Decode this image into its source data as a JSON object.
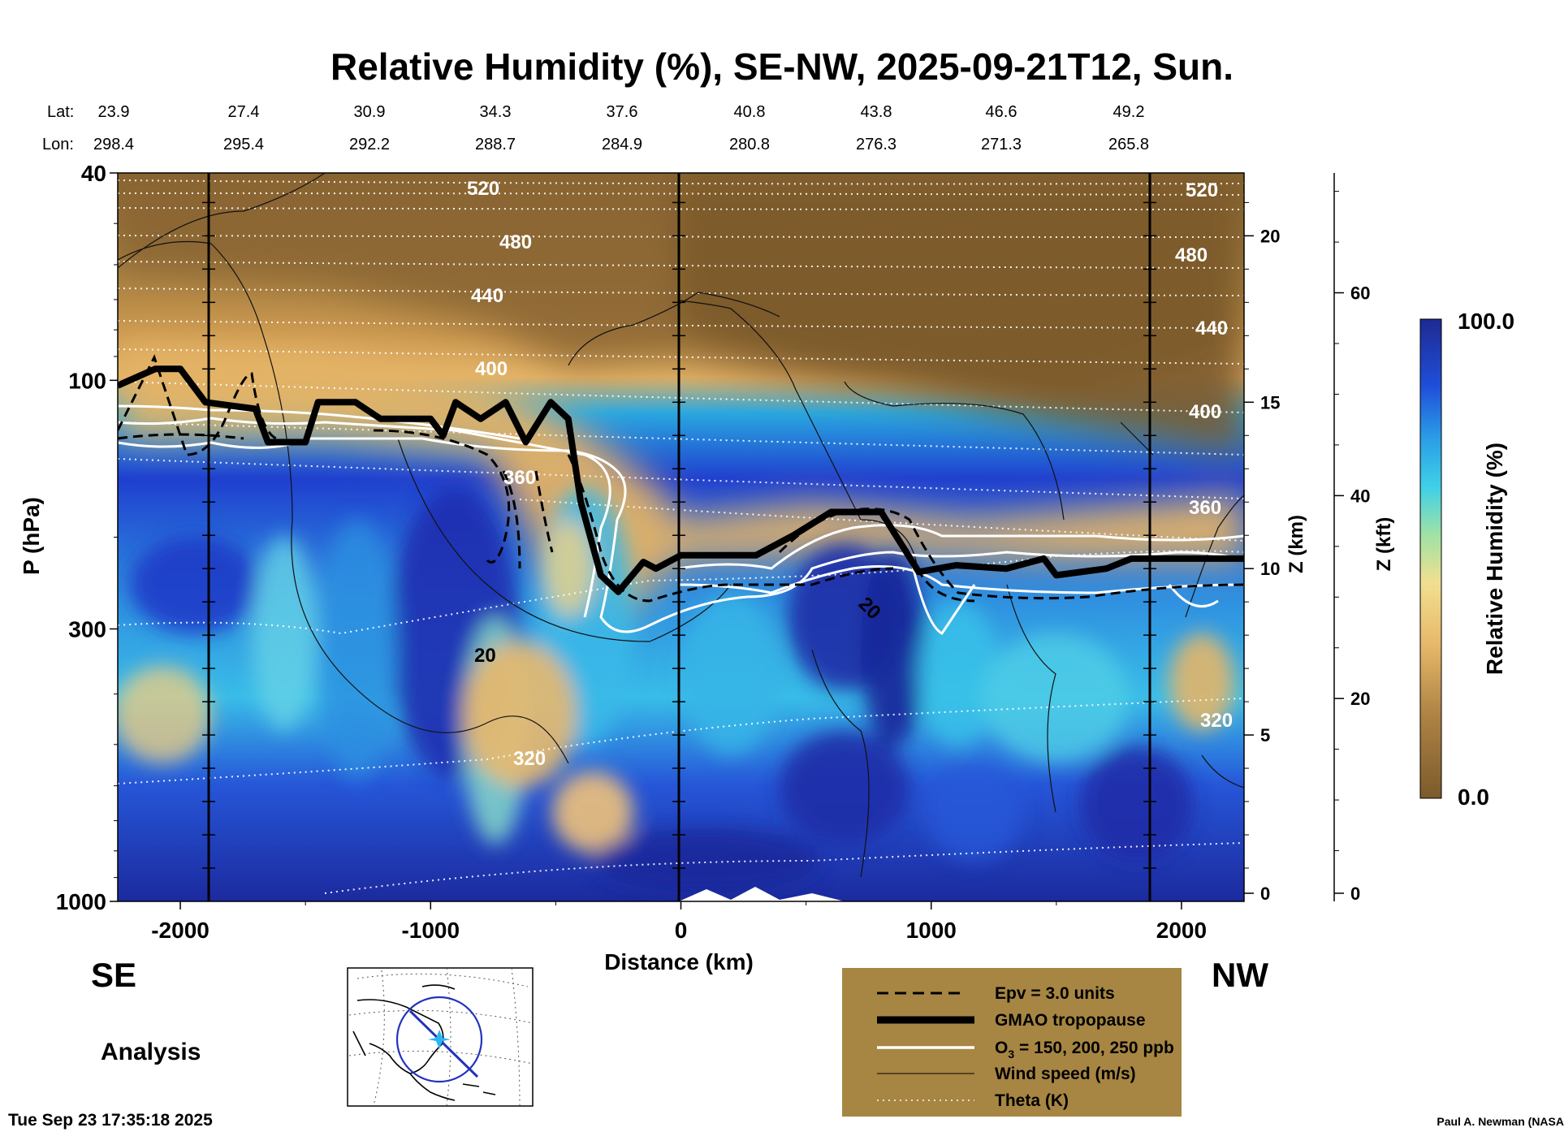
{
  "title": "Relative Humidity (%), SE-NW, 2025-09-21T12, Sun.",
  "coords": {
    "lat_label": "Lat:",
    "lon_label": "Lon:",
    "lat": [
      "23.9",
      "27.4",
      "30.9",
      "34.3",
      "37.6",
      "40.8",
      "43.8",
      "46.6",
      "49.2"
    ],
    "lon": [
      "298.4",
      "295.4",
      "292.2",
      "288.7",
      "284.9",
      "280.8",
      "276.3",
      "271.3",
      "265.8"
    ]
  },
  "chart_data": {
    "type": "heatmap",
    "xlabel": "Distance (km)",
    "ylabel": "P (hPa)",
    "xlim": [
      -2250,
      2250
    ],
    "ylim": [
      1000,
      40
    ],
    "y_scale": "log",
    "x_ticks": [
      "-2000",
      "-1000",
      "0",
      "1000",
      "2000"
    ],
    "y_ticks": [
      "40",
      "100",
      "300",
      "1000"
    ],
    "y_tick_values": [
      40,
      100,
      300,
      1000
    ],
    "z_km_label": "Z (km)",
    "z_km_ticks": [
      "0",
      "5",
      "10",
      "15",
      "20"
    ],
    "z_kft_label": "Z (kft)",
    "z_kft_ticks": [
      "0",
      "20",
      "40",
      "60"
    ],
    "colorbar": {
      "label": "Relative Humidity (%)",
      "min_label": "0.0",
      "max_label": "100.0",
      "range": [
        0,
        100
      ]
    },
    "theta_labels": [
      "520",
      "480",
      "440",
      "400",
      "360",
      "320",
      "520",
      "480",
      "440",
      "400",
      "360",
      "320"
    ],
    "wind_labels": [
      "20",
      "20"
    ],
    "tropopause_km": [
      {
        "x": -2250,
        "z": 15.5
      },
      {
        "x": -2100,
        "z": 16.0
      },
      {
        "x": -2000,
        "z": 16.0
      },
      {
        "x": -1900,
        "z": 15.0
      },
      {
        "x": -1700,
        "z": 14.8
      },
      {
        "x": -1650,
        "z": 13.8
      },
      {
        "x": -1500,
        "z": 13.8
      },
      {
        "x": -1450,
        "z": 15.0
      },
      {
        "x": -1300,
        "z": 15.0
      },
      {
        "x": -1200,
        "z": 14.5
      },
      {
        "x": -1000,
        "z": 14.5
      },
      {
        "x": -950,
        "z": 14.0
      },
      {
        "x": -900,
        "z": 15.0
      },
      {
        "x": -800,
        "z": 14.5
      },
      {
        "x": -700,
        "z": 15.0
      },
      {
        "x": -620,
        "z": 13.8
      },
      {
        "x": -520,
        "z": 15.0
      },
      {
        "x": -450,
        "z": 14.5
      },
      {
        "x": -400,
        "z": 12.0
      },
      {
        "x": -320,
        "z": 9.8
      },
      {
        "x": -250,
        "z": 9.3
      },
      {
        "x": -150,
        "z": 10.2
      },
      {
        "x": -100,
        "z": 10.0
      },
      {
        "x": 0,
        "z": 10.4
      },
      {
        "x": 200,
        "z": 10.4
      },
      {
        "x": 300,
        "z": 10.4
      },
      {
        "x": 450,
        "z": 11.0
      },
      {
        "x": 600,
        "z": 11.7
      },
      {
        "x": 800,
        "z": 11.7
      },
      {
        "x": 950,
        "z": 9.9
      },
      {
        "x": 1100,
        "z": 10.1
      },
      {
        "x": 1300,
        "z": 10.0
      },
      {
        "x": 1450,
        "z": 10.3
      },
      {
        "x": 1500,
        "z": 9.8
      },
      {
        "x": 1700,
        "z": 10.0
      },
      {
        "x": 1800,
        "z": 10.3
      },
      {
        "x": 2250,
        "z": 10.3
      }
    ]
  },
  "labels": {
    "se": "SE",
    "nw": "NW",
    "analysis": "Analysis",
    "timestamp": "Tue Sep 23 17:35:18 2025",
    "credit": "Paul A. Newman (NASA"
  },
  "legend": {
    "items": [
      {
        "label": "Epv = 3.0 units"
      },
      {
        "label": "GMAO tropopause"
      },
      {
        "label": "O3 = 150, 200, 250 ppb",
        "main": "O",
        "sub": "3",
        "rest": " = 150, 200, 250 ppb"
      },
      {
        "label": "Wind speed (m/s)"
      },
      {
        "label": "Theta (K)"
      }
    ]
  },
  "colors": {
    "brown_dark": "#7c5a2c",
    "brown": "#a07a3e",
    "tan": "#e4b366",
    "yellow": "#f5d67c",
    "cyan": "#34c7e8",
    "blue": "#1f44d6",
    "navy": "#1f2a9c",
    "legend_bg": "#a78643"
  }
}
